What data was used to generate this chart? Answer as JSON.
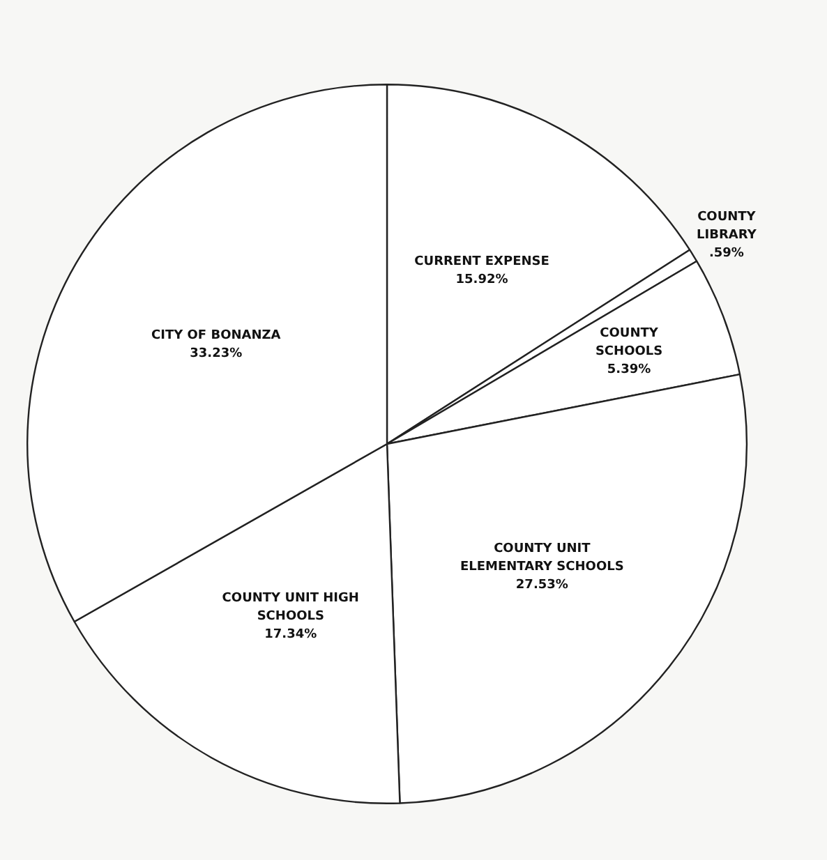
{
  "chart_data": {
    "type": "pie",
    "categories": [
      "CURRENT EXPENSE",
      "COUNTY LIBRARY",
      "COUNTY SCHOOLS",
      "COUNTY UNIT ELEMENTARY SCHOOLS",
      "COUNTY UNIT HIGH SCHOOLS",
      "CITY OF BONANZA"
    ],
    "values": [
      15.92,
      0.59,
      5.39,
      27.53,
      17.34,
      33.23
    ],
    "value_labels": [
      "15.92%",
      ".59%",
      "5.39%",
      "27.53%",
      "17.34%",
      "33.23%"
    ],
    "colors": [
      "#ffffff",
      "#ffffff",
      "#ffffff",
      "#ffffff",
      "#ffffff",
      "#ffffff"
    ],
    "legend": false
  }
}
